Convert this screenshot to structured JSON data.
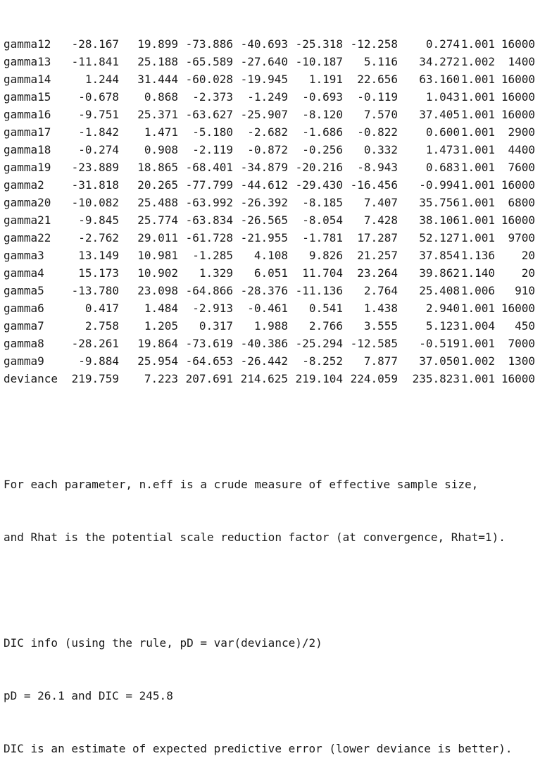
{
  "table": {
    "rows": [
      {
        "name": "gamma12",
        "mean": "-28.167",
        "sd": "19.899",
        "q2_5": "-73.886",
        "q25": "-40.693",
        "q50": "-25.318",
        "q75": "-12.258",
        "q97_5": "0.274",
        "rhat": "1.001",
        "neff": "16000"
      },
      {
        "name": "gamma13",
        "mean": "-11.841",
        "sd": "25.188",
        "q2_5": "-65.589",
        "q25": "-27.640",
        "q50": "-10.187",
        "q75": "5.116",
        "q97_5": "34.272",
        "rhat": "1.002",
        "neff": "1400"
      },
      {
        "name": "gamma14",
        "mean": "1.244",
        "sd": "31.444",
        "q2_5": "-60.028",
        "q25": "-19.945",
        "q50": "1.191",
        "q75": "22.656",
        "q97_5": "63.160",
        "rhat": "1.001",
        "neff": "16000"
      },
      {
        "name": "gamma15",
        "mean": "-0.678",
        "sd": "0.868",
        "q2_5": "-2.373",
        "q25": "-1.249",
        "q50": "-0.693",
        "q75": "-0.119",
        "q97_5": "1.043",
        "rhat": "1.001",
        "neff": "16000"
      },
      {
        "name": "gamma16",
        "mean": "-9.751",
        "sd": "25.371",
        "q2_5": "-63.627",
        "q25": "-25.907",
        "q50": "-8.120",
        "q75": "7.570",
        "q97_5": "37.405",
        "rhat": "1.001",
        "neff": "16000"
      },
      {
        "name": "gamma17",
        "mean": "-1.842",
        "sd": "1.471",
        "q2_5": "-5.180",
        "q25": "-2.682",
        "q50": "-1.686",
        "q75": "-0.822",
        "q97_5": "0.600",
        "rhat": "1.001",
        "neff": "2900"
      },
      {
        "name": "gamma18",
        "mean": "-0.274",
        "sd": "0.908",
        "q2_5": "-2.119",
        "q25": "-0.872",
        "q50": "-0.256",
        "q75": "0.332",
        "q97_5": "1.473",
        "rhat": "1.001",
        "neff": "4400"
      },
      {
        "name": "gamma19",
        "mean": "-23.889",
        "sd": "18.865",
        "q2_5": "-68.401",
        "q25": "-34.879",
        "q50": "-20.216",
        "q75": "-8.943",
        "q97_5": "0.683",
        "rhat": "1.001",
        "neff": "7600"
      },
      {
        "name": "gamma2",
        "mean": "-31.818",
        "sd": "20.265",
        "q2_5": "-77.799",
        "q25": "-44.612",
        "q50": "-29.430",
        "q75": "-16.456",
        "q97_5": "-0.994",
        "rhat": "1.001",
        "neff": "16000"
      },
      {
        "name": "gamma20",
        "mean": "-10.082",
        "sd": "25.488",
        "q2_5": "-63.992",
        "q25": "-26.392",
        "q50": "-8.185",
        "q75": "7.407",
        "q97_5": "35.756",
        "rhat": "1.001",
        "neff": "6800"
      },
      {
        "name": "gamma21",
        "mean": "-9.845",
        "sd": "25.774",
        "q2_5": "-63.834",
        "q25": "-26.565",
        "q50": "-8.054",
        "q75": "7.428",
        "q97_5": "38.106",
        "rhat": "1.001",
        "neff": "16000"
      },
      {
        "name": "gamma22",
        "mean": "-2.762",
        "sd": "29.011",
        "q2_5": "-61.728",
        "q25": "-21.955",
        "q50": "-1.781",
        "q75": "17.287",
        "q97_5": "52.127",
        "rhat": "1.001",
        "neff": "9700"
      },
      {
        "name": "gamma3",
        "mean": "13.149",
        "sd": "10.981",
        "q2_5": "-1.285",
        "q25": "4.108",
        "q50": "9.826",
        "q75": "21.257",
        "q97_5": "37.854",
        "rhat": "1.136",
        "neff": "20"
      },
      {
        "name": "gamma4",
        "mean": "15.173",
        "sd": "10.902",
        "q2_5": "1.329",
        "q25": "6.051",
        "q50": "11.704",
        "q75": "23.264",
        "q97_5": "39.862",
        "rhat": "1.140",
        "neff": "20"
      },
      {
        "name": "gamma5",
        "mean": "-13.780",
        "sd": "23.098",
        "q2_5": "-64.866",
        "q25": "-28.376",
        "q50": "-11.136",
        "q75": "2.764",
        "q97_5": "25.408",
        "rhat": "1.006",
        "neff": "910"
      },
      {
        "name": "gamma6",
        "mean": "0.417",
        "sd": "1.484",
        "q2_5": "-2.913",
        "q25": "-0.461",
        "q50": "0.541",
        "q75": "1.438",
        "q97_5": "2.940",
        "rhat": "1.001",
        "neff": "16000"
      },
      {
        "name": "gamma7",
        "mean": "2.758",
        "sd": "1.205",
        "q2_5": "0.317",
        "q25": "1.988",
        "q50": "2.766",
        "q75": "3.555",
        "q97_5": "5.123",
        "rhat": "1.004",
        "neff": "450"
      },
      {
        "name": "gamma8",
        "mean": "-28.261",
        "sd": "19.864",
        "q2_5": "-73.619",
        "q25": "-40.386",
        "q50": "-25.294",
        "q75": "-12.585",
        "q97_5": "-0.519",
        "rhat": "1.001",
        "neff": "7000"
      },
      {
        "name": "gamma9",
        "mean": "-9.884",
        "sd": "25.954",
        "q2_5": "-64.653",
        "q25": "-26.442",
        "q50": "-8.252",
        "q75": "7.877",
        "q97_5": "37.050",
        "rhat": "1.002",
        "neff": "1300"
      },
      {
        "name": "deviance",
        "mean": "219.759",
        "sd": "7.223",
        "q2_5": "207.691",
        "q25": "214.625",
        "q50": "219.104",
        "q75": "224.059",
        "q97_5": "235.823",
        "rhat": "1.001",
        "neff": "16000"
      }
    ]
  },
  "notes": {
    "neff_line1": "For each parameter, n.eff is a crude measure of effective sample size,",
    "neff_line2": "and Rhat is the potential scale reduction factor (at convergence, Rhat=1).",
    "dic_line1": "DIC info (using the rule, pD = var(deviance)/2)",
    "dic_line2": "pD = 26.1 and DIC = 245.8",
    "dic_line3": "DIC is an estimate of expected predictive error (lower deviance is better)."
  }
}
